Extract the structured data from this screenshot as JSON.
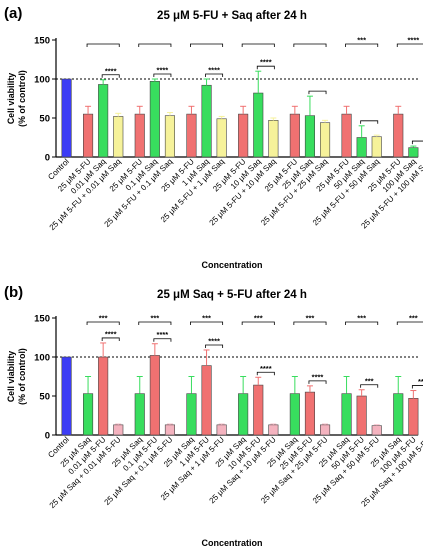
{
  "chart_data": [
    {
      "panel_label": "(a)",
      "type": "bar",
      "title": "25 μM 5-FU + Saq after 24 h",
      "ylabel": "Cell viability\n(% of control)",
      "xlabel": "Concentration",
      "ylim": [
        0,
        150
      ],
      "yticks": [
        0,
        50,
        100,
        150
      ],
      "reference_line": 100,
      "categories": [
        "Control",
        "25 μM 5-FU",
        "0.01 μM Saq",
        "25 μM 5-FU + 0.01 μM Saq",
        "25 μM 5-FU",
        "0.1 μM Saq",
        "25 μM 5-FU + 0.1 μM Saq",
        "25 μM 5-FU",
        "1 μM Saq",
        "25 μM 5-FU + 1 μM Saq",
        "25 μM 5-FU",
        "10 μM Saq",
        "25 μM 5-FU + 10 μM Saq",
        "25 μM 5-FU",
        "25 μM Saq",
        "25 μM 5-FU + 25 μM Saq",
        "25 μM 5-FU",
        "50 μM Saq",
        "25 μM 5-FU + 50 μM Saq",
        "25 μM 5-FU",
        "100 μM Saq",
        "25 μM 5-FU + 100 μM Saq"
      ],
      "values": [
        100,
        55,
        93,
        52,
        55,
        97,
        53,
        55,
        92,
        49,
        55,
        82,
        47,
        55,
        53,
        44,
        55,
        25,
        26,
        55,
        12,
        12
      ],
      "errors": [
        0,
        10,
        6,
        4,
        10,
        3,
        4,
        10,
        8,
        3,
        10,
        28,
        3,
        10,
        25,
        3,
        10,
        15,
        2,
        10,
        2,
        2
      ],
      "colors": [
        "#3d3df5",
        "#f07171",
        "#38dd5e",
        "#f6f29a",
        "#f07171",
        "#38dd5e",
        "#f6f29a",
        "#f07171",
        "#38dd5e",
        "#f6f29a",
        "#f07171",
        "#38dd5e",
        "#f6f29a",
        "#f07171",
        "#38dd5e",
        "#f6f29a",
        "#f07171",
        "#38dd5e",
        "#f6f29a",
        "#f07171",
        "#38dd5e",
        "#f6f29a"
      ],
      "significance": [
        {
          "from": 1,
          "to": 3,
          "label": ""
        },
        {
          "from": 2,
          "to": 3,
          "label": "****"
        },
        {
          "from": 4,
          "to": 6,
          "label": ""
        },
        {
          "from": 5,
          "to": 6,
          "label": "****"
        },
        {
          "from": 7,
          "to": 9,
          "label": ""
        },
        {
          "from": 8,
          "to": 9,
          "label": "****"
        },
        {
          "from": 10,
          "to": 12,
          "label": ""
        },
        {
          "from": 11,
          "to": 12,
          "label": "****"
        },
        {
          "from": 13,
          "to": 15,
          "label": ""
        },
        {
          "from": 14,
          "to": 15,
          "label": ""
        },
        {
          "from": 16,
          "to": 18,
          "label": "***"
        },
        {
          "from": 17,
          "to": 18,
          "label": ""
        },
        {
          "from": 19,
          "to": 21,
          "label": "****"
        },
        {
          "from": 20,
          "to": 21,
          "label": ""
        }
      ]
    },
    {
      "panel_label": "(b)",
      "type": "bar",
      "title": "25 μM Saq + 5-FU after 24 h",
      "ylabel": "Cell viability\n(% of control)",
      "xlabel": "Concentration",
      "ylim": [
        0,
        150
      ],
      "yticks": [
        0,
        50,
        100,
        150
      ],
      "reference_line": 100,
      "categories": [
        "Control",
        "25 μM Saq",
        "0.01 μM 5-FU",
        "25 μM Saq + 0.01 μM 5-FU",
        "25 μM Saq",
        "0.1 μM 5-FU",
        "25 μM Saq + 0.1 μM 5-FU",
        "25 μM Saq",
        "1 μM 5-FU",
        "25 μM Saq + 1 μM 5-FU",
        "25 μM Saq",
        "10 μM 5-FU",
        "25 μM Saq + 10 μM 5-FU",
        "25 μM Saq",
        "25 μM 5-FU",
        "25 μM Saq + 25 μM 5-FU",
        "25 μM Saq",
        "50 μM 5-FU",
        "25 μM Saq + 50 μM 5-FU",
        "25 μM Saq",
        "100 μM 5-FU",
        "25 μM Saq + 100 μM 5-FU"
      ],
      "values": [
        100,
        53,
        100,
        13,
        53,
        102,
        13,
        53,
        89,
        13,
        53,
        64,
        13,
        53,
        55,
        13,
        53,
        50,
        12,
        53,
        47,
        12
      ],
      "errors": [
        0,
        22,
        18,
        1,
        22,
        15,
        1,
        22,
        20,
        1,
        22,
        10,
        1,
        22,
        8,
        1,
        22,
        8,
        1,
        22,
        10,
        1
      ],
      "colors": [
        "#3d3df5",
        "#38dd5e",
        "#f07171",
        "#f4b3bf",
        "#38dd5e",
        "#f07171",
        "#f4b3bf",
        "#38dd5e",
        "#f07171",
        "#f4b3bf",
        "#38dd5e",
        "#f07171",
        "#f4b3bf",
        "#38dd5e",
        "#f07171",
        "#f4b3bf",
        "#38dd5e",
        "#f07171",
        "#f4b3bf",
        "#38dd5e",
        "#f07171",
        "#f4b3bf"
      ],
      "significance": [
        {
          "from": 1,
          "to": 3,
          "label": "***"
        },
        {
          "from": 2,
          "to": 3,
          "label": "****"
        },
        {
          "from": 4,
          "to": 6,
          "label": "***"
        },
        {
          "from": 5,
          "to": 6,
          "label": "****"
        },
        {
          "from": 7,
          "to": 9,
          "label": "***"
        },
        {
          "from": 8,
          "to": 9,
          "label": "****"
        },
        {
          "from": 10,
          "to": 12,
          "label": "***"
        },
        {
          "from": 11,
          "to": 12,
          "label": "****"
        },
        {
          "from": 13,
          "to": 15,
          "label": "***"
        },
        {
          "from": 14,
          "to": 15,
          "label": "****"
        },
        {
          "from": 16,
          "to": 18,
          "label": "***"
        },
        {
          "from": 17,
          "to": 18,
          "label": "***"
        },
        {
          "from": 19,
          "to": 21,
          "label": "***"
        },
        {
          "from": 20,
          "to": 21,
          "label": "**"
        }
      ]
    }
  ]
}
